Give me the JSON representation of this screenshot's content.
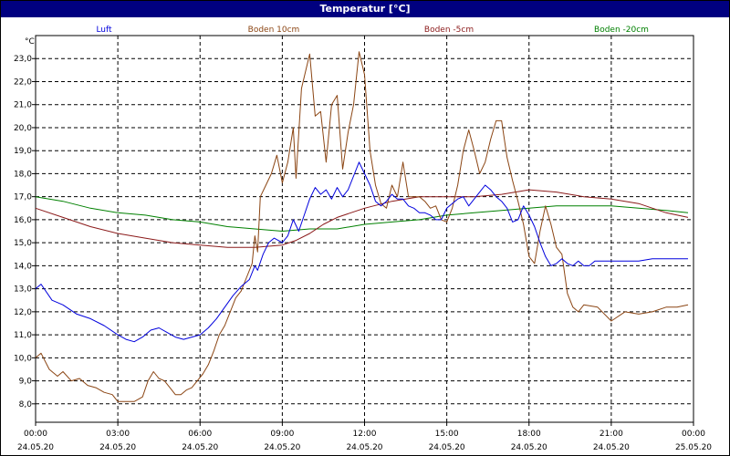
{
  "title": "Temperatur [°C]",
  "chart_data": {
    "type": "line",
    "title": "Temperatur [°C]",
    "yunit": "°C",
    "ylim": [
      7.2,
      24.0
    ],
    "yticks": [
      "8,0",
      "9,0",
      "10,0",
      "11,0",
      "12,0",
      "13,0",
      "14,0",
      "15,0",
      "16,0",
      "17,0",
      "18,0",
      "19,0",
      "20,0",
      "21,0",
      "22,0",
      "23,0"
    ],
    "xlim": [
      0,
      24
    ],
    "xticks": [
      {
        "time": "00:00",
        "date": "24.05.20"
      },
      {
        "time": "03:00",
        "date": "24.05.20"
      },
      {
        "time": "06:00",
        "date": "24.05.20"
      },
      {
        "time": "09:00",
        "date": "24.05.20"
      },
      {
        "time": "12:00",
        "date": "24.05.20"
      },
      {
        "time": "15:00",
        "date": "24.05.20"
      },
      {
        "time": "18:00",
        "date": "24.05.20"
      },
      {
        "time": "21:00",
        "date": "24.05.20"
      },
      {
        "time": "00:00",
        "date": "25.05.20"
      }
    ],
    "grid": true,
    "legend_position": "top",
    "series": [
      {
        "name": "Luft",
        "color": "#0000dd",
        "x": [
          0,
          0.2,
          0.6,
          1.0,
          1.5,
          2.0,
          2.5,
          3.0,
          3.3,
          3.6,
          3.9,
          4.2,
          4.5,
          4.8,
          5.1,
          5.4,
          5.7,
          6.0,
          6.3,
          6.6,
          6.9,
          7.2,
          7.5,
          7.8,
          8.0,
          8.1,
          8.3,
          8.5,
          8.7,
          9.0,
          9.2,
          9.4,
          9.6,
          9.8,
          10.0,
          10.2,
          10.4,
          10.6,
          10.8,
          11.0,
          11.2,
          11.4,
          11.6,
          11.8,
          12.0,
          12.2,
          12.4,
          12.6,
          12.8,
          13.0,
          13.2,
          13.4,
          13.6,
          13.8,
          14.0,
          14.2,
          14.4,
          14.6,
          14.8,
          15.0,
          15.2,
          15.4,
          15.6,
          15.8,
          16.0,
          16.2,
          16.4,
          16.6,
          16.8,
          17.0,
          17.2,
          17.4,
          17.6,
          17.8,
          18.0,
          18.2,
          18.4,
          18.6,
          18.8,
          19.0,
          19.2,
          19.4,
          19.6,
          19.8,
          20.0,
          20.2,
          20.4,
          20.6,
          20.8,
          21.0,
          21.2,
          21.4,
          21.6,
          21.8,
          22.0,
          22.5,
          23.0,
          23.4,
          23.8
        ],
        "values": [
          13.0,
          13.2,
          12.5,
          12.3,
          11.9,
          11.7,
          11.4,
          11.0,
          10.8,
          10.7,
          10.9,
          11.2,
          11.3,
          11.1,
          10.9,
          10.8,
          10.9,
          11.0,
          11.3,
          11.7,
          12.2,
          12.7,
          13.1,
          13.4,
          14.0,
          13.8,
          14.5,
          15.0,
          15.2,
          15.0,
          15.3,
          16.0,
          15.5,
          16.2,
          16.9,
          17.4,
          17.1,
          17.3,
          16.9,
          17.4,
          17.0,
          17.3,
          17.9,
          18.5,
          18.0,
          17.5,
          16.8,
          16.6,
          16.8,
          17.1,
          16.9,
          16.9,
          16.6,
          16.5,
          16.3,
          16.3,
          16.2,
          16.0,
          16.0,
          16.5,
          16.7,
          16.9,
          17.0,
          16.6,
          16.9,
          17.2,
          17.5,
          17.3,
          17.0,
          16.8,
          16.5,
          15.9,
          16.0,
          16.6,
          16.2,
          15.7,
          15.0,
          14.4,
          14.0,
          14.1,
          14.3,
          14.1,
          14.0,
          14.2,
          14.0,
          14.0,
          14.2,
          14.2,
          14.2,
          14.2,
          14.2,
          14.2,
          14.2,
          14.2,
          14.2,
          14.3,
          14.3,
          14.3,
          14.3
        ],
        "legend": "Luft"
      },
      {
        "name": "Boden 10cm",
        "color": "#8b4513",
        "x": [
          0,
          0.2,
          0.5,
          0.8,
          1.0,
          1.3,
          1.6,
          1.9,
          2.2,
          2.5,
          2.8,
          3.0,
          3.3,
          3.6,
          3.9,
          4.1,
          4.3,
          4.5,
          4.7,
          4.9,
          5.1,
          5.3,
          5.5,
          5.7,
          5.9,
          6.1,
          6.3,
          6.5,
          6.7,
          6.9,
          7.1,
          7.3,
          7.5,
          7.7,
          7.9,
          8.0,
          8.1,
          8.2,
          8.4,
          8.6,
          8.8,
          9.0,
          9.2,
          9.4,
          9.5,
          9.7,
          9.9,
          10.0,
          10.2,
          10.4,
          10.6,
          10.8,
          11.0,
          11.2,
          11.4,
          11.6,
          11.8,
          12.0,
          12.2,
          12.4,
          12.6,
          12.8,
          13.0,
          13.2,
          13.4,
          13.6,
          13.8,
          14.0,
          14.2,
          14.4,
          14.6,
          14.8,
          15.0,
          15.2,
          15.4,
          15.6,
          15.8,
          16.0,
          16.2,
          16.4,
          16.6,
          16.8,
          17.0,
          17.2,
          17.4,
          17.6,
          17.8,
          18.0,
          18.2,
          18.4,
          18.6,
          18.8,
          19.0,
          19.2,
          19.4,
          19.6,
          19.8,
          20.0,
          20.5,
          21.0,
          21.5,
          22.0,
          22.5,
          23.0,
          23.4,
          23.8
        ],
        "values": [
          10.0,
          10.2,
          9.5,
          9.2,
          9.4,
          9.0,
          9.1,
          8.8,
          8.7,
          8.5,
          8.4,
          8.1,
          8.1,
          8.1,
          8.3,
          9.0,
          9.4,
          9.1,
          9.0,
          8.7,
          8.4,
          8.4,
          8.6,
          8.7,
          9.0,
          9.3,
          9.7,
          10.3,
          11.0,
          11.4,
          12.0,
          12.6,
          12.9,
          13.5,
          14.1,
          15.3,
          14.6,
          17.0,
          17.5,
          18.0,
          18.8,
          17.6,
          18.5,
          20.0,
          17.8,
          21.7,
          22.7,
          23.2,
          20.5,
          20.7,
          18.5,
          21.0,
          21.4,
          18.2,
          19.8,
          21.0,
          23.3,
          22.3,
          19.0,
          17.5,
          16.7,
          16.5,
          17.5,
          17.0,
          18.5,
          17.0,
          17.0,
          17.0,
          16.8,
          16.5,
          16.6,
          16.0,
          15.9,
          16.5,
          17.5,
          19.0,
          19.9,
          19.0,
          18.0,
          18.5,
          19.5,
          20.3,
          20.3,
          18.7,
          17.7,
          16.8,
          15.8,
          14.4,
          14.1,
          15.5,
          16.6,
          15.8,
          14.8,
          14.5,
          12.8,
          12.2,
          12.0,
          12.3,
          12.2,
          11.6,
          12.0,
          11.9,
          12.0,
          12.2,
          12.2,
          12.3
        ],
        "legend": "Boden 10cm"
      },
      {
        "name": "Boden -5cm",
        "color": "#8b1a1a",
        "x": [
          0,
          1,
          2,
          3,
          4,
          5,
          6,
          7,
          8,
          9,
          9.5,
          10,
          10.5,
          11,
          12,
          13,
          14,
          15,
          16,
          17,
          18,
          19,
          20,
          21,
          22,
          23,
          23.8
        ],
        "values": [
          16.5,
          16.1,
          15.7,
          15.4,
          15.2,
          15.0,
          14.9,
          14.8,
          14.8,
          14.9,
          15.1,
          15.4,
          15.8,
          16.1,
          16.5,
          16.8,
          17.0,
          17.0,
          17.0,
          17.1,
          17.3,
          17.2,
          17.0,
          16.9,
          16.7,
          16.3,
          16.1
        ],
        "legend": "Boden -5cm"
      },
      {
        "name": "Boden -20cm",
        "color": "#008000",
        "x": [
          0,
          1,
          2,
          3,
          4,
          5,
          6,
          7,
          8,
          9,
          10,
          11,
          12,
          13,
          14,
          15,
          16,
          17,
          18,
          19,
          20,
          21,
          22,
          23,
          23.8
        ],
        "values": [
          17.0,
          16.8,
          16.5,
          16.3,
          16.2,
          16.0,
          15.9,
          15.7,
          15.6,
          15.5,
          15.6,
          15.6,
          15.8,
          15.9,
          16.0,
          16.2,
          16.3,
          16.4,
          16.5,
          16.6,
          16.6,
          16.6,
          16.5,
          16.4,
          16.3
        ],
        "legend": "Boden -20cm"
      }
    ]
  }
}
